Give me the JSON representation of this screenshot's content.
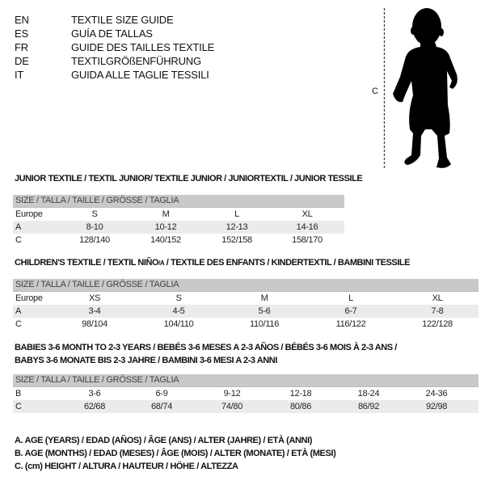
{
  "languages": [
    {
      "code": "EN",
      "text": "TEXTILE SIZE GUIDE"
    },
    {
      "code": "ES",
      "text": "GUÍA DE TALLAS"
    },
    {
      "code": "FR",
      "text": "GUIDE DES TAILLES TEXTILE"
    },
    {
      "code": "DE",
      "text": "TEXTILGRÖßENFÜHRUNG"
    },
    {
      "code": "IT",
      "text": "GUIDA ALLE TAGLIE TESSILI"
    }
  ],
  "figure": {
    "measure_label": "C"
  },
  "junior": {
    "title": "JUNIOR TEXTILE / TEXTIL JUNIOR/ TEXTILE JUNIOR / JUNIORTEXTIL / JUNIOR TESSILE",
    "header": "SIZE / TALLA / TAILLE / GRÖSSE / TAGLIA",
    "rows": [
      {
        "label": "Europe",
        "cells": [
          "S",
          "M",
          "L",
          "XL"
        ]
      },
      {
        "label": "A",
        "cells": [
          "8-10",
          "10-12",
          "12-13",
          "14-16"
        ]
      },
      {
        "label": "C",
        "cells": [
          "128/140",
          "140/152",
          "152/158",
          "158/170"
        ]
      }
    ]
  },
  "children": {
    "title_pre": "CHILDREN'S TEXTILE / TEXTIL NIÑO",
    "title_sub": "/A",
    "title_post": " / TEXTILE DES ENFANTS / KINDERTEXTIL / BAMBINI TESSILE",
    "header": "SIZE / TALLA / TAILLE / GRÖSSE / TAGLIA",
    "rows": [
      {
        "label": "Europe",
        "cells": [
          "XS",
          "S",
          "M",
          "L",
          "XL"
        ]
      },
      {
        "label": "A",
        "cells": [
          "3-4",
          "4-5",
          "5-6",
          "6-7",
          "7-8"
        ]
      },
      {
        "label": "C",
        "cells": [
          "98/104",
          "104/110",
          "110/116",
          "116/122",
          "122/128"
        ]
      }
    ]
  },
  "babies": {
    "title_line1": "BABIES 3-6 MONTH TO 2-3 YEARS / BEBÉS 3-6 MESES A 2-3 AÑOS / BÉBÉS 3-6 MOIS À 2-3 ANS /",
    "title_line2": "BABYS 3-6 MONATE BIS 2-3 JAHRE / BAMBINI 3-6 MESI A 2-3 ANNI",
    "header": "SIZE / TALLA / TAILLE / GRÖSSE / TAGLIA",
    "rows": [
      {
        "label": "B",
        "cells": [
          "3-6",
          "6-9",
          "9-12",
          "12-18",
          "18-24",
          "24-36"
        ]
      },
      {
        "label": "C",
        "cells": [
          "62/68",
          "68/74",
          "74/80",
          "80/86",
          "86/92",
          "92/98"
        ]
      }
    ]
  },
  "legend": [
    "A. AGE (YEARS) / EDAD (AÑOS) / ÂGE (ANS) / ALTER (JAHRE) / ETÀ (ANNI)",
    "B. AGE (MONTHS) / EDAD (MESES) / ÂGE (MOIS) / ALTER (MONATE) / ETÀ (MESI)",
    "C. (cm) HEIGHT / ALTURA / HAUTEUR / HÖHE / ALTEZZA"
  ]
}
